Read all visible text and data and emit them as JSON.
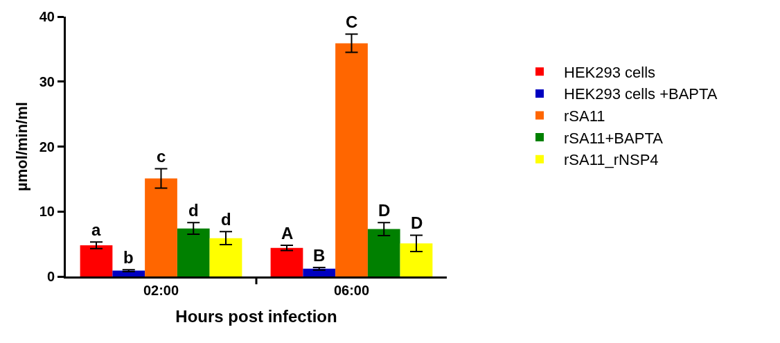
{
  "chart_data": {
    "type": "bar",
    "xlabel": "Hours post infection",
    "ylabel": "µmol/min/ml",
    "categories": [
      "02:00",
      "06:00"
    ],
    "ylim": [
      0,
      40
    ],
    "yticks": [
      0,
      10,
      20,
      30,
      40
    ],
    "grid": false,
    "legend": "right",
    "series": [
      {
        "name": "HEK293 cells",
        "color": "#ff0000",
        "values": [
          4.8,
          4.4
        ],
        "errors": [
          0.5,
          0.4
        ],
        "value_labels": [
          "a",
          "A"
        ]
      },
      {
        "name": "HEK293 cells +BAPTA",
        "color": "#0000c0",
        "values": [
          0.9,
          1.2
        ],
        "errors": [
          0.15,
          0.2
        ],
        "value_labels": [
          "b",
          "B"
        ]
      },
      {
        "name": "rSA11",
        "color": "#ff6600",
        "values": [
          15.1,
          35.9
        ],
        "errors": [
          1.5,
          1.4
        ],
        "value_labels": [
          "c",
          "C"
        ]
      },
      {
        "name": "rSA11+BAPTA",
        "color": "#008000",
        "values": [
          7.4,
          7.3
        ],
        "errors": [
          0.9,
          1.0
        ],
        "value_labels": [
          "d",
          "D"
        ]
      },
      {
        "name": "rSA11_rNSP4",
        "color": "#ffff00",
        "values": [
          5.9,
          5.1
        ],
        "errors": [
          1.0,
          1.25
        ],
        "value_labels": [
          "d",
          "D"
        ]
      }
    ]
  }
}
